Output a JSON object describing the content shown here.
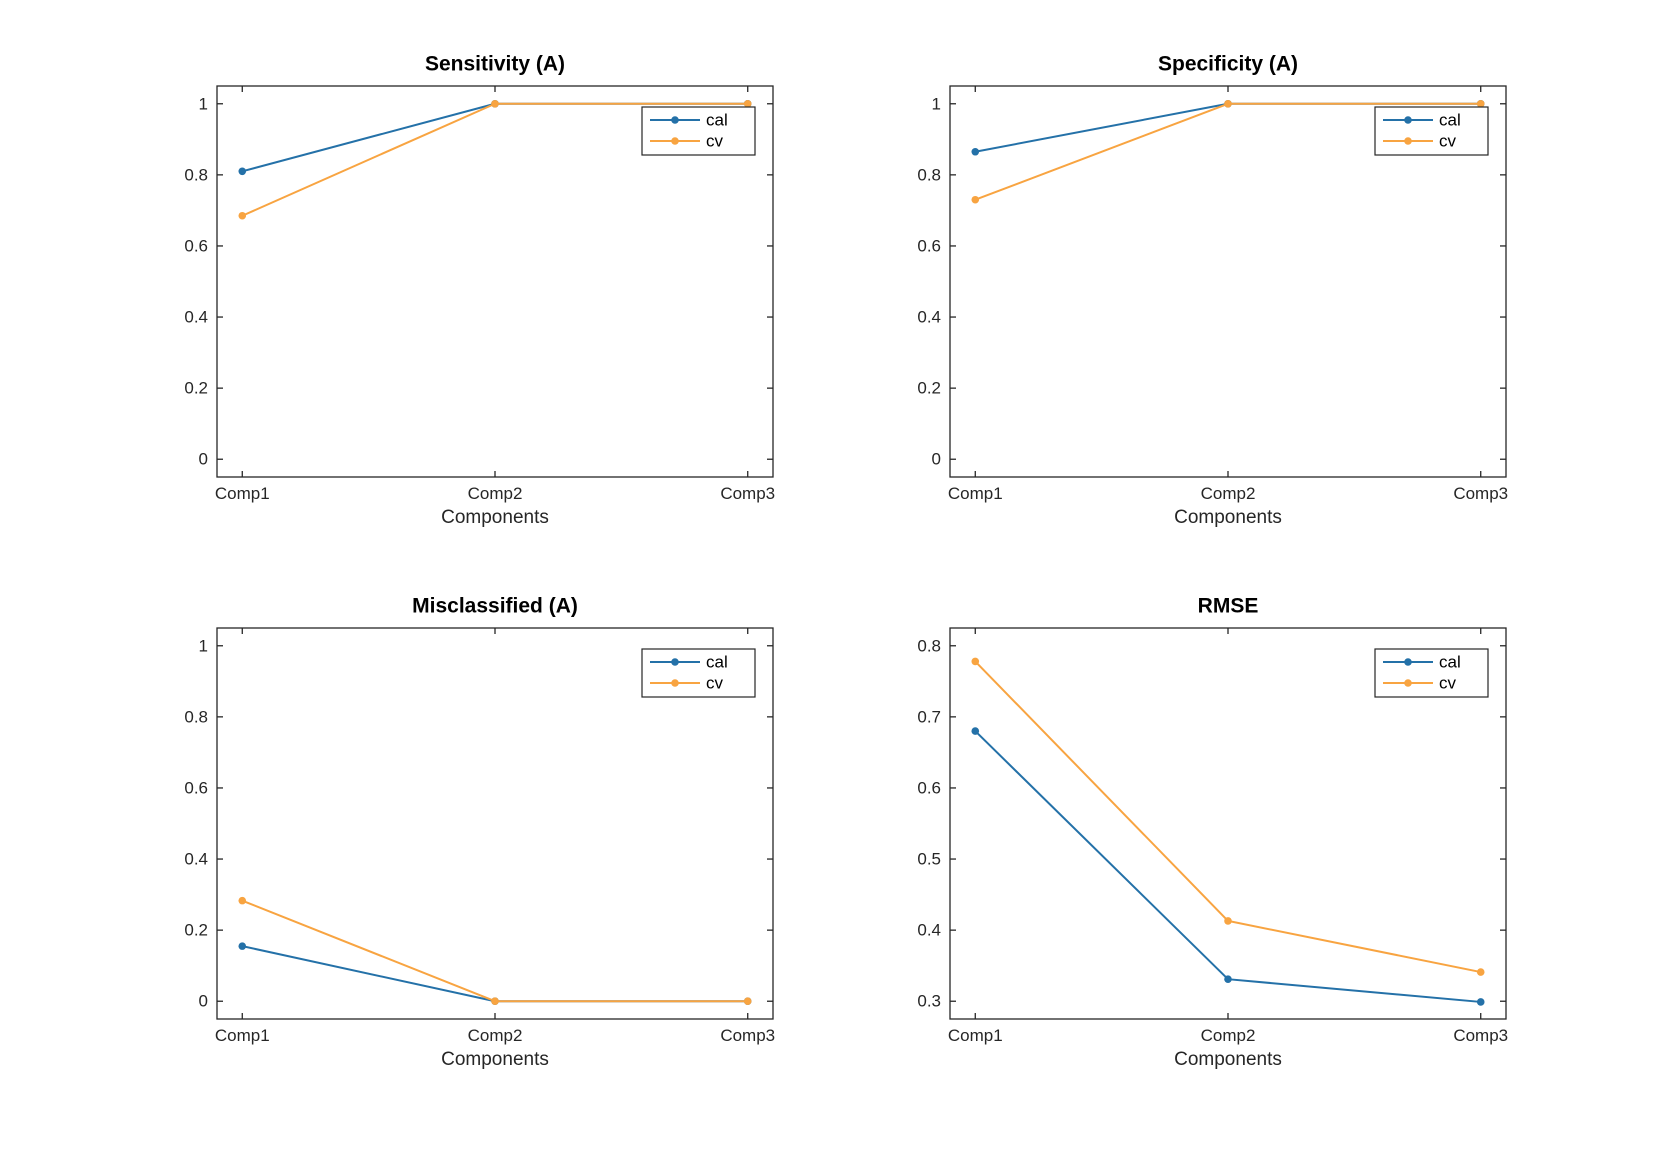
{
  "figure": {
    "background": "#ffffff",
    "axis_color": "#262626",
    "title_color": "#000000",
    "legend_border_color": "#262626"
  },
  "chart_data": [
    {
      "type": "line",
      "title": "Sensitivity (A)",
      "xlabel": "Components",
      "ylabel": "",
      "categories": [
        "Comp1",
        "Comp2",
        "Comp3"
      ],
      "x": [
        1,
        2,
        3
      ],
      "xlim": [
        0.9,
        3.1
      ],
      "ylim": [
        -0.05,
        1.05
      ],
      "yticks": [
        0,
        0.2,
        0.4,
        0.6,
        0.8,
        1
      ],
      "ytick_labels": [
        "0",
        "0.2",
        "0.4",
        "0.6",
        "0.8",
        "1"
      ],
      "grid": false,
      "legend_position": "top-right",
      "series": [
        {
          "name": "cal",
          "color": "#2471a8",
          "values": [
            0.81,
            1.0,
            1.0
          ]
        },
        {
          "name": "cv",
          "color": "#f8a441",
          "values": [
            0.685,
            1.0,
            1.0
          ]
        }
      ]
    },
    {
      "type": "line",
      "title": "Specificity (A)",
      "xlabel": "Components",
      "ylabel": "",
      "categories": [
        "Comp1",
        "Comp2",
        "Comp3"
      ],
      "x": [
        1,
        2,
        3
      ],
      "xlim": [
        0.9,
        3.1
      ],
      "ylim": [
        -0.05,
        1.05
      ],
      "yticks": [
        0,
        0.2,
        0.4,
        0.6,
        0.8,
        1
      ],
      "ytick_labels": [
        "0",
        "0.2",
        "0.4",
        "0.6",
        "0.8",
        "1"
      ],
      "grid": false,
      "legend_position": "top-right",
      "series": [
        {
          "name": "cal",
          "color": "#2471a8",
          "values": [
            0.865,
            1.0,
            1.0
          ]
        },
        {
          "name": "cv",
          "color": "#f8a441",
          "values": [
            0.73,
            1.0,
            1.0
          ]
        }
      ]
    },
    {
      "type": "line",
      "title": "Misclassified (A)",
      "xlabel": "Components",
      "ylabel": "",
      "categories": [
        "Comp1",
        "Comp2",
        "Comp3"
      ],
      "x": [
        1,
        2,
        3
      ],
      "xlim": [
        0.9,
        3.1
      ],
      "ylim": [
        -0.05,
        1.05
      ],
      "yticks": [
        0,
        0.2,
        0.4,
        0.6,
        0.8,
        1
      ],
      "ytick_labels": [
        "0",
        "0.2",
        "0.4",
        "0.6",
        "0.8",
        "1"
      ],
      "grid": false,
      "legend_position": "top-right",
      "series": [
        {
          "name": "cal",
          "color": "#2471a8",
          "values": [
            0.155,
            0.0,
            0.0
          ]
        },
        {
          "name": "cv",
          "color": "#f8a441",
          "values": [
            0.283,
            0.0,
            0.0
          ]
        }
      ]
    },
    {
      "type": "line",
      "title": "RMSE",
      "xlabel": "Components",
      "ylabel": "",
      "categories": [
        "Comp1",
        "Comp2",
        "Comp3"
      ],
      "x": [
        1,
        2,
        3
      ],
      "xlim": [
        0.9,
        3.1
      ],
      "ylim": [
        0.275,
        0.825
      ],
      "yticks": [
        0.3,
        0.4,
        0.5,
        0.6,
        0.7,
        0.8
      ],
      "ytick_labels": [
        "0.3",
        "0.4",
        "0.5",
        "0.6",
        "0.7",
        "0.8"
      ],
      "grid": false,
      "legend_position": "top-right",
      "series": [
        {
          "name": "cal",
          "color": "#2471a8",
          "values": [
            0.68,
            0.331,
            0.299
          ]
        },
        {
          "name": "cv",
          "color": "#f8a441",
          "values": [
            0.778,
            0.413,
            0.341
          ]
        }
      ]
    }
  ]
}
